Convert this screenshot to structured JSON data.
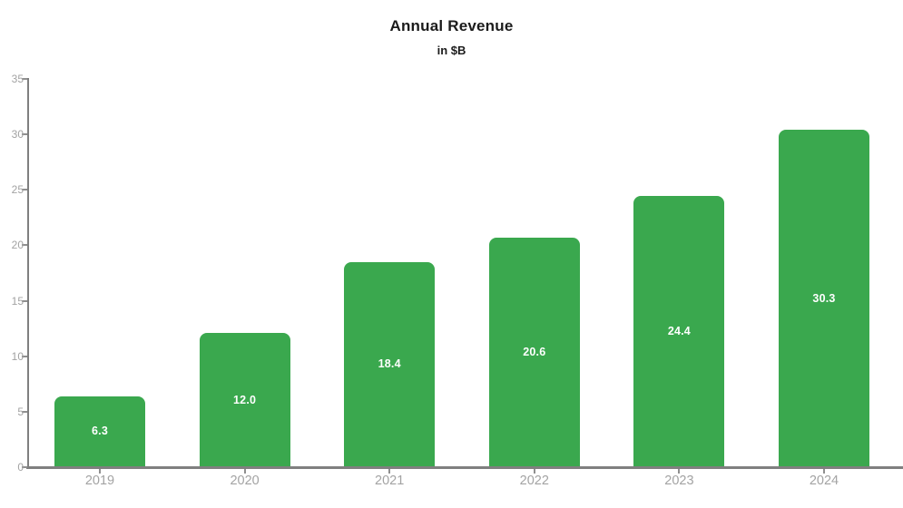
{
  "header": {
    "title": "Annual Revenue",
    "subtitle": "in $B"
  },
  "chart_data": {
    "type": "bar",
    "title": "Annual Revenue",
    "subtitle": "in $B",
    "categories": [
      "2019",
      "2020",
      "2021",
      "2022",
      "2023",
      "2024"
    ],
    "values": [
      6.3,
      12.0,
      18.4,
      20.6,
      24.4,
      30.3
    ],
    "value_labels": [
      "6.3",
      "12.0",
      "18.4",
      "20.6",
      "24.4",
      "30.3"
    ],
    "xlabel": "",
    "ylabel": "",
    "ylim": [
      0,
      35
    ],
    "yticks": [
      0,
      5,
      10,
      15,
      20,
      25,
      30,
      35
    ],
    "grid": false,
    "legend": "none",
    "colors": {
      "bar": "#3aa84e",
      "axis": "#7f7f7f",
      "tick": "#8f8f8f",
      "tick_label": "#a3a3a3",
      "value_label": "#ffffff",
      "title": "#1b1b1b"
    }
  }
}
